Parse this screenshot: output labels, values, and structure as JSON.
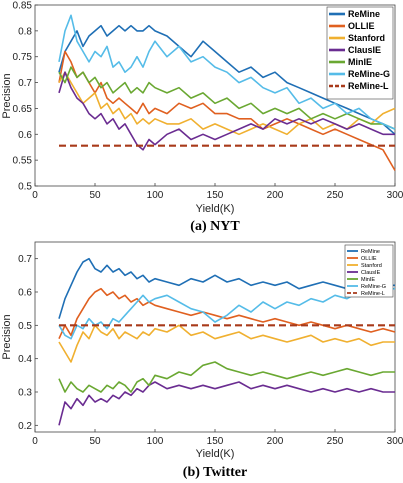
{
  "chart_data": [
    {
      "type": "line",
      "caption": "(a) NYT",
      "xlabel": "Yield(K)",
      "ylabel": "Precision",
      "xlim": [
        0,
        300
      ],
      "ylim": [
        0.5,
        0.85
      ],
      "xticks": [
        "0",
        "50",
        "100",
        "150",
        "200",
        "250",
        "300"
      ],
      "yticks": [
        "0.5",
        "0.55",
        "0.6",
        "0.65",
        "0.7",
        "0.75",
        "0.8",
        "0.85"
      ],
      "legend_position": "top-right",
      "series": [
        {
          "name": "ReMine",
          "color": "#1f6fb5",
          "dashed": false,
          "x": [
            20,
            25,
            30,
            35,
            40,
            45,
            50,
            55,
            60,
            65,
            70,
            75,
            80,
            85,
            90,
            95,
            100,
            110,
            120,
            130,
            140,
            150,
            160,
            170,
            180,
            190,
            200,
            210,
            220,
            230,
            240,
            250,
            260,
            270,
            280,
            290,
            300
          ],
          "y": [
            0.72,
            0.76,
            0.78,
            0.8,
            0.77,
            0.79,
            0.8,
            0.81,
            0.79,
            0.8,
            0.81,
            0.8,
            0.81,
            0.8,
            0.8,
            0.81,
            0.8,
            0.79,
            0.77,
            0.75,
            0.78,
            0.76,
            0.74,
            0.72,
            0.73,
            0.71,
            0.72,
            0.7,
            0.69,
            0.68,
            0.67,
            0.66,
            0.65,
            0.64,
            0.63,
            0.62,
            0.6
          ]
        },
        {
          "name": "OLLIE",
          "color": "#e06020",
          "dashed": false,
          "x": [
            20,
            25,
            30,
            35,
            40,
            45,
            50,
            55,
            60,
            65,
            70,
            75,
            80,
            85,
            90,
            95,
            100,
            110,
            120,
            130,
            140,
            150,
            160,
            170,
            180,
            190,
            200,
            210,
            220,
            230,
            240,
            250,
            260,
            270,
            280,
            290,
            300
          ],
          "y": [
            0.7,
            0.76,
            0.74,
            0.71,
            0.72,
            0.7,
            0.68,
            0.7,
            0.67,
            0.66,
            0.67,
            0.66,
            0.65,
            0.64,
            0.66,
            0.64,
            0.65,
            0.64,
            0.66,
            0.65,
            0.66,
            0.64,
            0.64,
            0.63,
            0.63,
            0.61,
            0.62,
            0.63,
            0.62,
            0.61,
            0.6,
            0.61,
            0.6,
            0.59,
            0.58,
            0.57,
            0.53
          ]
        },
        {
          "name": "Stanford",
          "color": "#f0b030",
          "dashed": false,
          "x": [
            20,
            25,
            30,
            35,
            40,
            45,
            50,
            55,
            60,
            65,
            70,
            75,
            80,
            85,
            90,
            95,
            100,
            110,
            120,
            130,
            140,
            150,
            160,
            170,
            180,
            190,
            200,
            210,
            220,
            230,
            240,
            250,
            260,
            270,
            280,
            290,
            300
          ],
          "y": [
            0.7,
            0.72,
            0.7,
            0.68,
            0.66,
            0.67,
            0.68,
            0.65,
            0.66,
            0.64,
            0.65,
            0.63,
            0.64,
            0.62,
            0.63,
            0.62,
            0.63,
            0.62,
            0.62,
            0.63,
            0.61,
            0.62,
            0.61,
            0.6,
            0.61,
            0.62,
            0.61,
            0.6,
            0.62,
            0.63,
            0.61,
            0.62,
            0.61,
            0.63,
            0.62,
            0.64,
            0.65
          ]
        },
        {
          "name": "ClausIE",
          "color": "#6a2c91",
          "dashed": false,
          "x": [
            20,
            25,
            30,
            35,
            40,
            45,
            50,
            55,
            60,
            65,
            70,
            75,
            80,
            85,
            90,
            95,
            100,
            110,
            120,
            130,
            140,
            150,
            160,
            170,
            180,
            190,
            200,
            210,
            220,
            230,
            240,
            250,
            260,
            270,
            280,
            290,
            300
          ],
          "y": [
            0.68,
            0.72,
            0.69,
            0.67,
            0.66,
            0.64,
            0.63,
            0.64,
            0.62,
            0.63,
            0.61,
            0.62,
            0.6,
            0.58,
            0.57,
            0.59,
            0.58,
            0.6,
            0.61,
            0.59,
            0.6,
            0.59,
            0.6,
            0.61,
            0.62,
            0.61,
            0.63,
            0.62,
            0.63,
            0.62,
            0.63,
            0.62,
            0.61,
            0.62,
            0.61,
            0.6,
            0.6
          ]
        },
        {
          "name": "MinIE",
          "color": "#6aa832",
          "dashed": false,
          "x": [
            20,
            25,
            30,
            35,
            40,
            45,
            50,
            55,
            60,
            65,
            70,
            75,
            80,
            85,
            90,
            95,
            100,
            110,
            120,
            130,
            140,
            150,
            160,
            170,
            180,
            190,
            200,
            210,
            220,
            230,
            240,
            250,
            260,
            270,
            280,
            290,
            300
          ],
          "y": [
            0.72,
            0.7,
            0.73,
            0.71,
            0.72,
            0.7,
            0.71,
            0.69,
            0.7,
            0.68,
            0.69,
            0.7,
            0.68,
            0.69,
            0.68,
            0.7,
            0.69,
            0.68,
            0.69,
            0.67,
            0.68,
            0.66,
            0.67,
            0.65,
            0.66,
            0.64,
            0.65,
            0.64,
            0.65,
            0.63,
            0.64,
            0.63,
            0.64,
            0.63,
            0.62,
            0.62,
            0.61
          ]
        },
        {
          "name": "ReMine-G",
          "color": "#55bce8",
          "dashed": false,
          "x": [
            20,
            25,
            30,
            35,
            40,
            45,
            50,
            55,
            60,
            65,
            70,
            75,
            80,
            85,
            90,
            95,
            100,
            110,
            120,
            130,
            140,
            150,
            160,
            170,
            180,
            190,
            200,
            210,
            220,
            230,
            240,
            250,
            260,
            270,
            280,
            290,
            300
          ],
          "y": [
            0.74,
            0.8,
            0.83,
            0.78,
            0.76,
            0.74,
            0.76,
            0.75,
            0.77,
            0.73,
            0.74,
            0.72,
            0.73,
            0.75,
            0.73,
            0.76,
            0.78,
            0.75,
            0.77,
            0.74,
            0.75,
            0.73,
            0.72,
            0.7,
            0.71,
            0.69,
            0.68,
            0.69,
            0.66,
            0.67,
            0.65,
            0.66,
            0.64,
            0.65,
            0.63,
            0.62,
            0.61
          ]
        },
        {
          "name": "ReMine-L",
          "color": "#a83a1a",
          "dashed": true,
          "x": [
            20,
            300
          ],
          "y": [
            0.578,
            0.578
          ]
        }
      ]
    },
    {
      "type": "line",
      "caption": "(b) Twitter",
      "xlabel": "Yield(K)",
      "ylabel": "Precision",
      "xlim": [
        0,
        300
      ],
      "ylim": [
        0.18,
        0.75
      ],
      "xticks": [
        "0",
        "50",
        "100",
        "150",
        "200",
        "250",
        "300"
      ],
      "yticks": [
        "0.2",
        "0.3",
        "0.4",
        "0.5",
        "0.6",
        "0.7"
      ],
      "legend_position": "top-right",
      "series": [
        {
          "name": "ReMine",
          "color": "#1f6fb5",
          "dashed": false,
          "x": [
            20,
            25,
            30,
            35,
            40,
            45,
            50,
            55,
            60,
            65,
            70,
            75,
            80,
            85,
            90,
            95,
            100,
            110,
            120,
            130,
            140,
            150,
            160,
            170,
            180,
            190,
            200,
            210,
            220,
            230,
            240,
            250,
            260,
            270,
            280,
            290,
            300
          ],
          "y": [
            0.52,
            0.58,
            0.62,
            0.66,
            0.69,
            0.7,
            0.67,
            0.66,
            0.68,
            0.66,
            0.67,
            0.65,
            0.66,
            0.64,
            0.65,
            0.63,
            0.64,
            0.63,
            0.62,
            0.64,
            0.63,
            0.65,
            0.63,
            0.64,
            0.62,
            0.63,
            0.62,
            0.63,
            0.61,
            0.62,
            0.63,
            0.62,
            0.61,
            0.62,
            0.63,
            0.62,
            0.62
          ]
        },
        {
          "name": "OLLIE",
          "color": "#e06020",
          "dashed": false,
          "x": [
            20,
            25,
            30,
            35,
            40,
            45,
            50,
            55,
            60,
            65,
            70,
            75,
            80,
            85,
            90,
            95,
            100,
            110,
            120,
            130,
            140,
            150,
            160,
            170,
            180,
            190,
            200,
            210,
            220,
            230,
            240,
            250,
            260,
            270,
            280,
            290,
            300
          ],
          "y": [
            0.46,
            0.5,
            0.47,
            0.52,
            0.55,
            0.58,
            0.6,
            0.61,
            0.59,
            0.6,
            0.58,
            0.59,
            0.57,
            0.58,
            0.56,
            0.57,
            0.56,
            0.55,
            0.54,
            0.53,
            0.54,
            0.53,
            0.52,
            0.53,
            0.52,
            0.51,
            0.52,
            0.51,
            0.5,
            0.51,
            0.5,
            0.49,
            0.5,
            0.49,
            0.48,
            0.49,
            0.48
          ]
        },
        {
          "name": "Stanford",
          "color": "#f0b030",
          "dashed": false,
          "x": [
            20,
            25,
            30,
            35,
            40,
            45,
            50,
            55,
            60,
            65,
            70,
            75,
            80,
            85,
            90,
            95,
            100,
            110,
            120,
            130,
            140,
            150,
            160,
            170,
            180,
            190,
            200,
            210,
            220,
            230,
            240,
            250,
            260,
            270,
            280,
            290,
            300
          ],
          "y": [
            0.45,
            0.42,
            0.39,
            0.44,
            0.48,
            0.46,
            0.5,
            0.48,
            0.47,
            0.49,
            0.46,
            0.48,
            0.47,
            0.46,
            0.48,
            0.47,
            0.49,
            0.48,
            0.5,
            0.47,
            0.48,
            0.46,
            0.47,
            0.48,
            0.46,
            0.47,
            0.46,
            0.45,
            0.46,
            0.47,
            0.45,
            0.46,
            0.45,
            0.46,
            0.44,
            0.45,
            0.45
          ]
        },
        {
          "name": "ClausIE",
          "color": "#6a2c91",
          "dashed": false,
          "x": [
            20,
            25,
            30,
            35,
            40,
            45,
            50,
            55,
            60,
            65,
            70,
            75,
            80,
            85,
            90,
            95,
            100,
            110,
            120,
            130,
            140,
            150,
            160,
            170,
            180,
            190,
            200,
            210,
            220,
            230,
            240,
            250,
            260,
            270,
            280,
            290,
            300
          ],
          "y": [
            0.2,
            0.27,
            0.25,
            0.28,
            0.26,
            0.29,
            0.27,
            0.28,
            0.27,
            0.29,
            0.28,
            0.3,
            0.29,
            0.31,
            0.3,
            0.32,
            0.33,
            0.31,
            0.32,
            0.31,
            0.32,
            0.31,
            0.32,
            0.33,
            0.31,
            0.32,
            0.31,
            0.32,
            0.31,
            0.3,
            0.31,
            0.3,
            0.31,
            0.3,
            0.31,
            0.3,
            0.3
          ]
        },
        {
          "name": "MinIE",
          "color": "#6aa832",
          "dashed": false,
          "x": [
            20,
            25,
            30,
            35,
            40,
            45,
            50,
            55,
            60,
            65,
            70,
            75,
            80,
            85,
            90,
            95,
            100,
            110,
            120,
            130,
            140,
            150,
            160,
            170,
            180,
            190,
            200,
            210,
            220,
            230,
            240,
            250,
            260,
            270,
            280,
            290,
            300
          ],
          "y": [
            0.34,
            0.3,
            0.33,
            0.31,
            0.3,
            0.32,
            0.31,
            0.3,
            0.32,
            0.31,
            0.33,
            0.32,
            0.3,
            0.33,
            0.34,
            0.32,
            0.35,
            0.34,
            0.36,
            0.35,
            0.38,
            0.39,
            0.37,
            0.36,
            0.35,
            0.36,
            0.35,
            0.34,
            0.35,
            0.36,
            0.35,
            0.36,
            0.37,
            0.36,
            0.35,
            0.36,
            0.36
          ]
        },
        {
          "name": "ReMine-G",
          "color": "#55bce8",
          "dashed": false,
          "x": [
            20,
            25,
            30,
            35,
            40,
            45,
            50,
            55,
            60,
            65,
            70,
            75,
            80,
            85,
            90,
            95,
            100,
            110,
            120,
            130,
            140,
            150,
            160,
            170,
            180,
            190,
            200,
            210,
            220,
            230,
            240,
            250,
            260,
            270,
            280,
            290,
            300
          ],
          "y": [
            0.5,
            0.47,
            0.46,
            0.5,
            0.49,
            0.52,
            0.5,
            0.51,
            0.49,
            0.52,
            0.51,
            0.53,
            0.55,
            0.57,
            0.59,
            0.57,
            0.58,
            0.59,
            0.57,
            0.55,
            0.54,
            0.51,
            0.53,
            0.56,
            0.54,
            0.57,
            0.55,
            0.57,
            0.56,
            0.58,
            0.57,
            0.59,
            0.58,
            0.6,
            0.59,
            0.61,
            0.61
          ]
        },
        {
          "name": "ReMine-L",
          "color": "#a83a1a",
          "dashed": true,
          "x": [
            20,
            300
          ],
          "y": [
            0.5,
            0.5
          ]
        }
      ]
    }
  ]
}
